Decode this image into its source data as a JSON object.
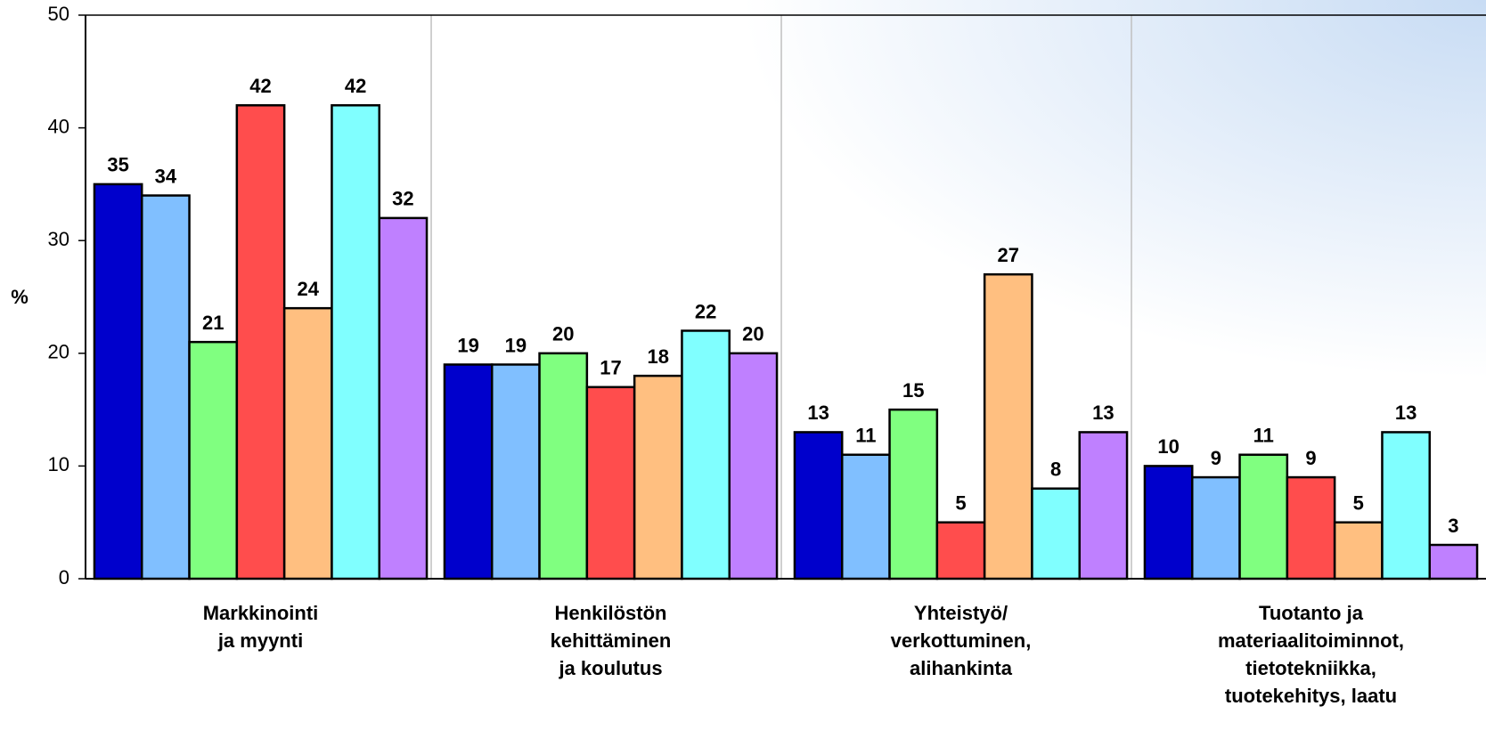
{
  "chart_data": {
    "type": "bar",
    "y_label": "%",
    "categories": [
      "Markkinointi\nja myynti",
      "Henkilöstön\nkehittäminen\nja koulutus",
      "Yhteistyö/\nverkottuminen,\nalihankinta",
      "Tuotanto ja\nmateriaalitoiminnot,\ntietotekniikka,\ntuotekehitys, laatu"
    ],
    "series": [
      {
        "color": "#0000cc",
        "values": [
          35,
          19,
          13,
          10
        ]
      },
      {
        "color": "#80bfff",
        "values": [
          34,
          19,
          11,
          9
        ]
      },
      {
        "color": "#80ff80",
        "values": [
          21,
          20,
          15,
          11
        ]
      },
      {
        "color": "#ff4d4d",
        "values": [
          42,
          17,
          5,
          9
        ]
      },
      {
        "color": "#ffbf80",
        "values": [
          24,
          18,
          27,
          5
        ]
      },
      {
        "color": "#80ffff",
        "values": [
          42,
          22,
          8,
          13
        ]
      },
      {
        "color": "#bf80ff",
        "values": [
          32,
          20,
          13,
          3
        ]
      }
    ],
    "ylim": [
      0,
      50
    ],
    "yticks": [
      0,
      10,
      20,
      30,
      40,
      50
    ],
    "grid": true
  }
}
